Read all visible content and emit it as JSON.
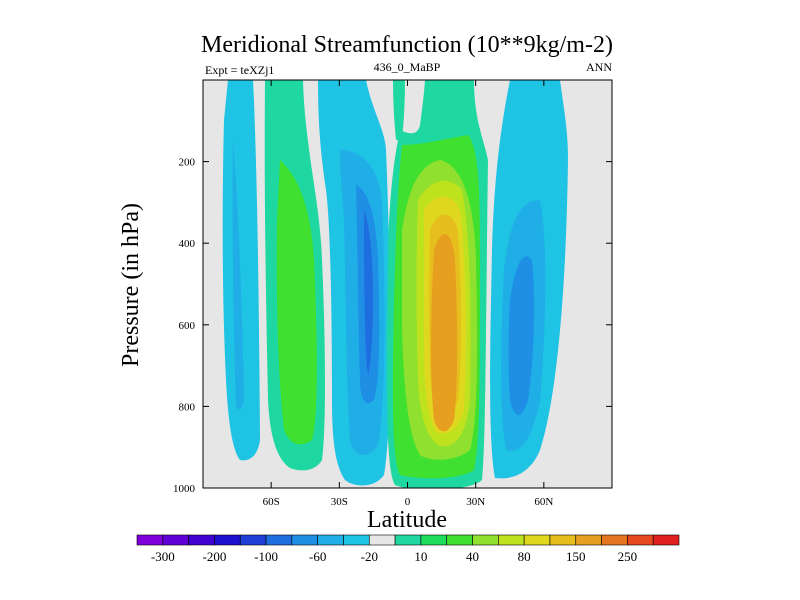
{
  "chart_data": {
    "type": "contour",
    "title": "Meridional Streamfunction (10**9kg/m-2)",
    "subtitle_left": "Expt = teXZj1",
    "subtitle_center": "436_0_MaBP",
    "subtitle_right": "ANN",
    "xlabel": "Latitude",
    "ylabel": "Pressure (in hPa)",
    "xlim": [
      -90,
      90
    ],
    "ylim": [
      1000,
      0
    ],
    "x_ticks": [
      {
        "value": -60,
        "label": "60S"
      },
      {
        "value": -30,
        "label": "30S"
      },
      {
        "value": 0,
        "label": "0"
      },
      {
        "value": 30,
        "label": "30N"
      },
      {
        "value": 60,
        "label": "60N"
      }
    ],
    "y_ticks": [
      {
        "value": 200,
        "label": "200"
      },
      {
        "value": 400,
        "label": "400"
      },
      {
        "value": 600,
        "label": "600"
      },
      {
        "value": 800,
        "label": "800"
      },
      {
        "value": 1000,
        "label": "1000"
      }
    ],
    "background_color": "#e6e6e6",
    "contour_regions": [
      {
        "name": "cell-farsouth",
        "level": -10,
        "lat_range": [
          -80,
          -72
        ],
        "p_top": 0,
        "p_bottom": 960
      },
      {
        "name": "cell-southern-ferrel",
        "level": 10,
        "lat_range": [
          -67,
          -44
        ],
        "p_top": 0,
        "p_bottom": 970
      },
      {
        "name": "cell-southern-hadley",
        "level": -40,
        "lat_range": [
          -40,
          -10
        ],
        "p_top": 0,
        "p_bottom": 990
      },
      {
        "name": "cell-equatorial-upper",
        "level": 10,
        "lat_range": [
          -8,
          -3
        ],
        "p_top": 0,
        "p_bottom": 60
      },
      {
        "name": "cell-northern-hadley",
        "level": 100,
        "lat_range": [
          -8,
          29
        ],
        "p_top": 0,
        "p_bottom": 995
      },
      {
        "name": "cell-northern-ferrel",
        "level": -60,
        "lat_range": [
          33,
          58
        ],
        "p_top": 0,
        "p_bottom": 980
      }
    ],
    "colorbar": {
      "colors": [
        "#7f00d9",
        "#5f00d4",
        "#3f00d0",
        "#1f10ce",
        "#1f3fd6",
        "#1f6ee0",
        "#1f8fe6",
        "#1faee6",
        "#1fc3e3",
        "#e6e6e6",
        "#1fd7a0",
        "#1fdd5a",
        "#3fe02f",
        "#8fe02f",
        "#bfe21f",
        "#e0d71f",
        "#e6bf1f",
        "#e69f1f",
        "#e6751f",
        "#e6481f",
        "#e01f1f"
      ],
      "labels": [
        "-300",
        "-200",
        "-100",
        "-60",
        "-20",
        "10",
        "40",
        "80",
        "150",
        "250"
      ]
    }
  }
}
